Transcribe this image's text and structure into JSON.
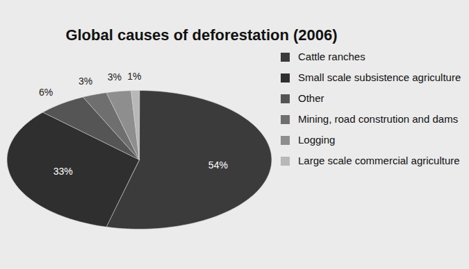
{
  "chart_data": {
    "type": "pie",
    "title": "Global causes of deforestation (2006)",
    "categories": [
      "Cattle ranches",
      "Small scale subsistence agriculture",
      "Other",
      "Mining, road constrution and dams",
      "Logging",
      "Large scale commercial agriculture"
    ],
    "values": [
      54,
      33,
      6,
      3,
      3,
      1
    ],
    "value_labels": [
      "54%",
      "33%",
      "6%",
      "3%",
      "3%",
      "1%"
    ],
    "colors": [
      "#3b3b3b",
      "#2f2f2f",
      "#555555",
      "#6f6f6f",
      "#8e8e8e",
      "#b8b8b8"
    ],
    "data_labels": true,
    "legend": "right"
  }
}
